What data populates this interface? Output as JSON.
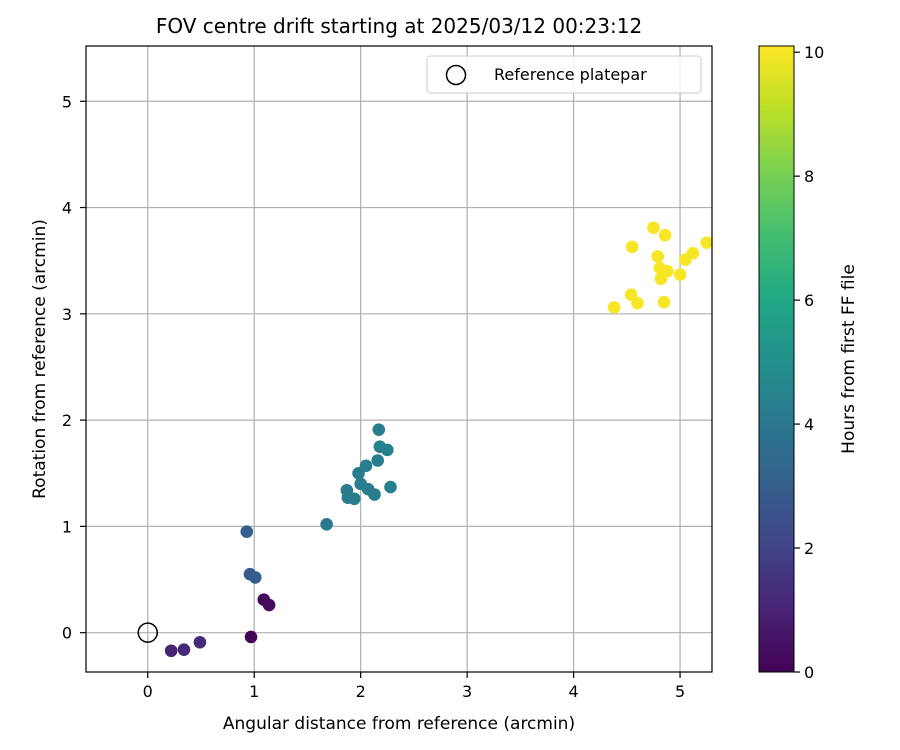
{
  "chart_data": {
    "type": "scatter",
    "title": "FOV centre drift starting at 2025/03/12 00:23:12",
    "xlabel": "Angular distance from reference (arcmin)",
    "ylabel": "Rotation from reference (arcmin)",
    "xlim": [
      -0.58,
      5.3
    ],
    "ylim": [
      -0.37,
      5.52
    ],
    "xticks": [
      0,
      1,
      2,
      3,
      4,
      5
    ],
    "yticks": [
      0,
      1,
      2,
      3,
      4,
      5
    ],
    "grid": true,
    "legend": {
      "placement": "top-right",
      "entries": [
        "Reference platepar"
      ]
    },
    "reference_point": {
      "name": "Reference platepar",
      "x": 0,
      "y": 0
    },
    "colorbar": {
      "label": "Hours from first FF file",
      "range": [
        0,
        10.1
      ],
      "ticks": [
        0,
        2,
        4,
        6,
        8,
        10
      ],
      "colormap": "viridis"
    },
    "points": [
      {
        "x": 0.97,
        "y": -0.04,
        "c": 0.05
      },
      {
        "x": 1.09,
        "y": 0.31,
        "c": 0.2
      },
      {
        "x": 1.14,
        "y": 0.26,
        "c": 0.3
      },
      {
        "x": 0.22,
        "y": -0.17,
        "c": 1.0
      },
      {
        "x": 0.34,
        "y": -0.16,
        "c": 1.1
      },
      {
        "x": 0.49,
        "y": -0.09,
        "c": 1.3
      },
      {
        "x": 0.96,
        "y": 0.55,
        "c": 2.9
      },
      {
        "x": 1.01,
        "y": 0.52,
        "c": 3.0
      },
      {
        "x": 0.93,
        "y": 0.95,
        "c": 3.0
      },
      {
        "x": 1.68,
        "y": 1.02,
        "c": 4.1
      },
      {
        "x": 1.87,
        "y": 1.34,
        "c": 4.2
      },
      {
        "x": 1.88,
        "y": 1.27,
        "c": 4.2
      },
      {
        "x": 1.94,
        "y": 1.26,
        "c": 4.2
      },
      {
        "x": 1.98,
        "y": 1.5,
        "c": 4.2
      },
      {
        "x": 2.0,
        "y": 1.4,
        "c": 4.3
      },
      {
        "x": 2.05,
        "y": 1.57,
        "c": 4.3
      },
      {
        "x": 2.07,
        "y": 1.35,
        "c": 4.3
      },
      {
        "x": 2.13,
        "y": 1.3,
        "c": 4.3
      },
      {
        "x": 2.16,
        "y": 1.62,
        "c": 4.3
      },
      {
        "x": 2.17,
        "y": 1.91,
        "c": 4.3
      },
      {
        "x": 2.18,
        "y": 1.75,
        "c": 4.4
      },
      {
        "x": 2.25,
        "y": 1.72,
        "c": 4.4
      },
      {
        "x": 2.28,
        "y": 1.37,
        "c": 4.4
      },
      {
        "x": 4.38,
        "y": 3.06,
        "c": 10.0
      },
      {
        "x": 4.54,
        "y": 3.18,
        "c": 10.0
      },
      {
        "x": 4.55,
        "y": 3.63,
        "c": 10.0
      },
      {
        "x": 4.6,
        "y": 3.1,
        "c": 10.0
      },
      {
        "x": 4.75,
        "y": 3.81,
        "c": 10.0
      },
      {
        "x": 4.79,
        "y": 3.54,
        "c": 10.0
      },
      {
        "x": 4.81,
        "y": 3.43,
        "c": 10.0
      },
      {
        "x": 4.82,
        "y": 3.33,
        "c": 10.0
      },
      {
        "x": 4.85,
        "y": 3.11,
        "c": 10.0
      },
      {
        "x": 4.86,
        "y": 3.74,
        "c": 10.0
      },
      {
        "x": 4.88,
        "y": 3.4,
        "c": 10.0
      },
      {
        "x": 5.0,
        "y": 3.37,
        "c": 10.0
      },
      {
        "x": 5.05,
        "y": 3.51,
        "c": 10.0
      },
      {
        "x": 5.12,
        "y": 3.57,
        "c": 10.0
      },
      {
        "x": 5.25,
        "y": 3.67,
        "c": 10.0
      }
    ]
  }
}
